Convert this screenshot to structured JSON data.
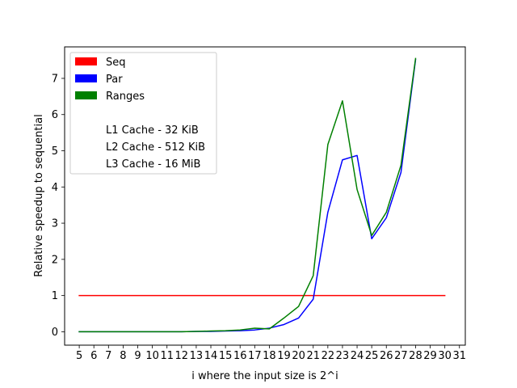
{
  "chart_data": {
    "type": "line",
    "title": "",
    "xlabel": "i where the input size is 2^i",
    "ylabel": "Relative speedup to sequential",
    "xlim": [
      4.0,
      31.4
    ],
    "ylim": [
      -0.37,
      7.87
    ],
    "x_ticks": [
      5,
      6,
      7,
      8,
      9,
      10,
      11,
      12,
      13,
      14,
      15,
      16,
      17,
      18,
      19,
      20,
      21,
      22,
      23,
      24,
      25,
      26,
      27,
      28,
      29,
      30,
      31
    ],
    "y_ticks": [
      0,
      1,
      2,
      3,
      4,
      5,
      6,
      7
    ],
    "grid": false,
    "legend_position": "upper-left",
    "series": [
      {
        "name": "Seq",
        "color": "#ff0000",
        "x": [
          5,
          30
        ],
        "y": [
          1,
          1
        ]
      },
      {
        "name": "Par",
        "color": "#0000ff",
        "x": [
          5,
          6,
          7,
          8,
          9,
          10,
          11,
          12,
          13,
          14,
          15,
          16,
          17,
          18,
          19,
          20,
          21,
          22,
          23,
          24,
          25,
          26,
          27,
          28
        ],
        "y": [
          0,
          0,
          0,
          0,
          0,
          0,
          0,
          0,
          0.01,
          0.01,
          0.02,
          0.03,
          0.05,
          0.1,
          0.2,
          0.38,
          0.9,
          3.3,
          4.75,
          4.87,
          2.57,
          3.15,
          4.4,
          7.52
        ]
      },
      {
        "name": "Ranges",
        "color": "#008000",
        "x": [
          5,
          6,
          7,
          8,
          9,
          10,
          11,
          12,
          13,
          14,
          15,
          16,
          17,
          18,
          19,
          20,
          21,
          22,
          23,
          24,
          25,
          26,
          27,
          28
        ],
        "y": [
          0,
          0,
          0,
          0,
          0,
          0,
          0,
          0,
          0.01,
          0.02,
          0.03,
          0.05,
          0.1,
          0.08,
          0.38,
          0.7,
          1.55,
          5.17,
          6.38,
          3.93,
          2.66,
          3.3,
          4.6,
          7.55
        ]
      }
    ],
    "legend_notes": [
      "L1 Cache - 32 KiB",
      "L2 Cache - 512 KiB",
      "L3 Cache - 16 MiB"
    ]
  }
}
